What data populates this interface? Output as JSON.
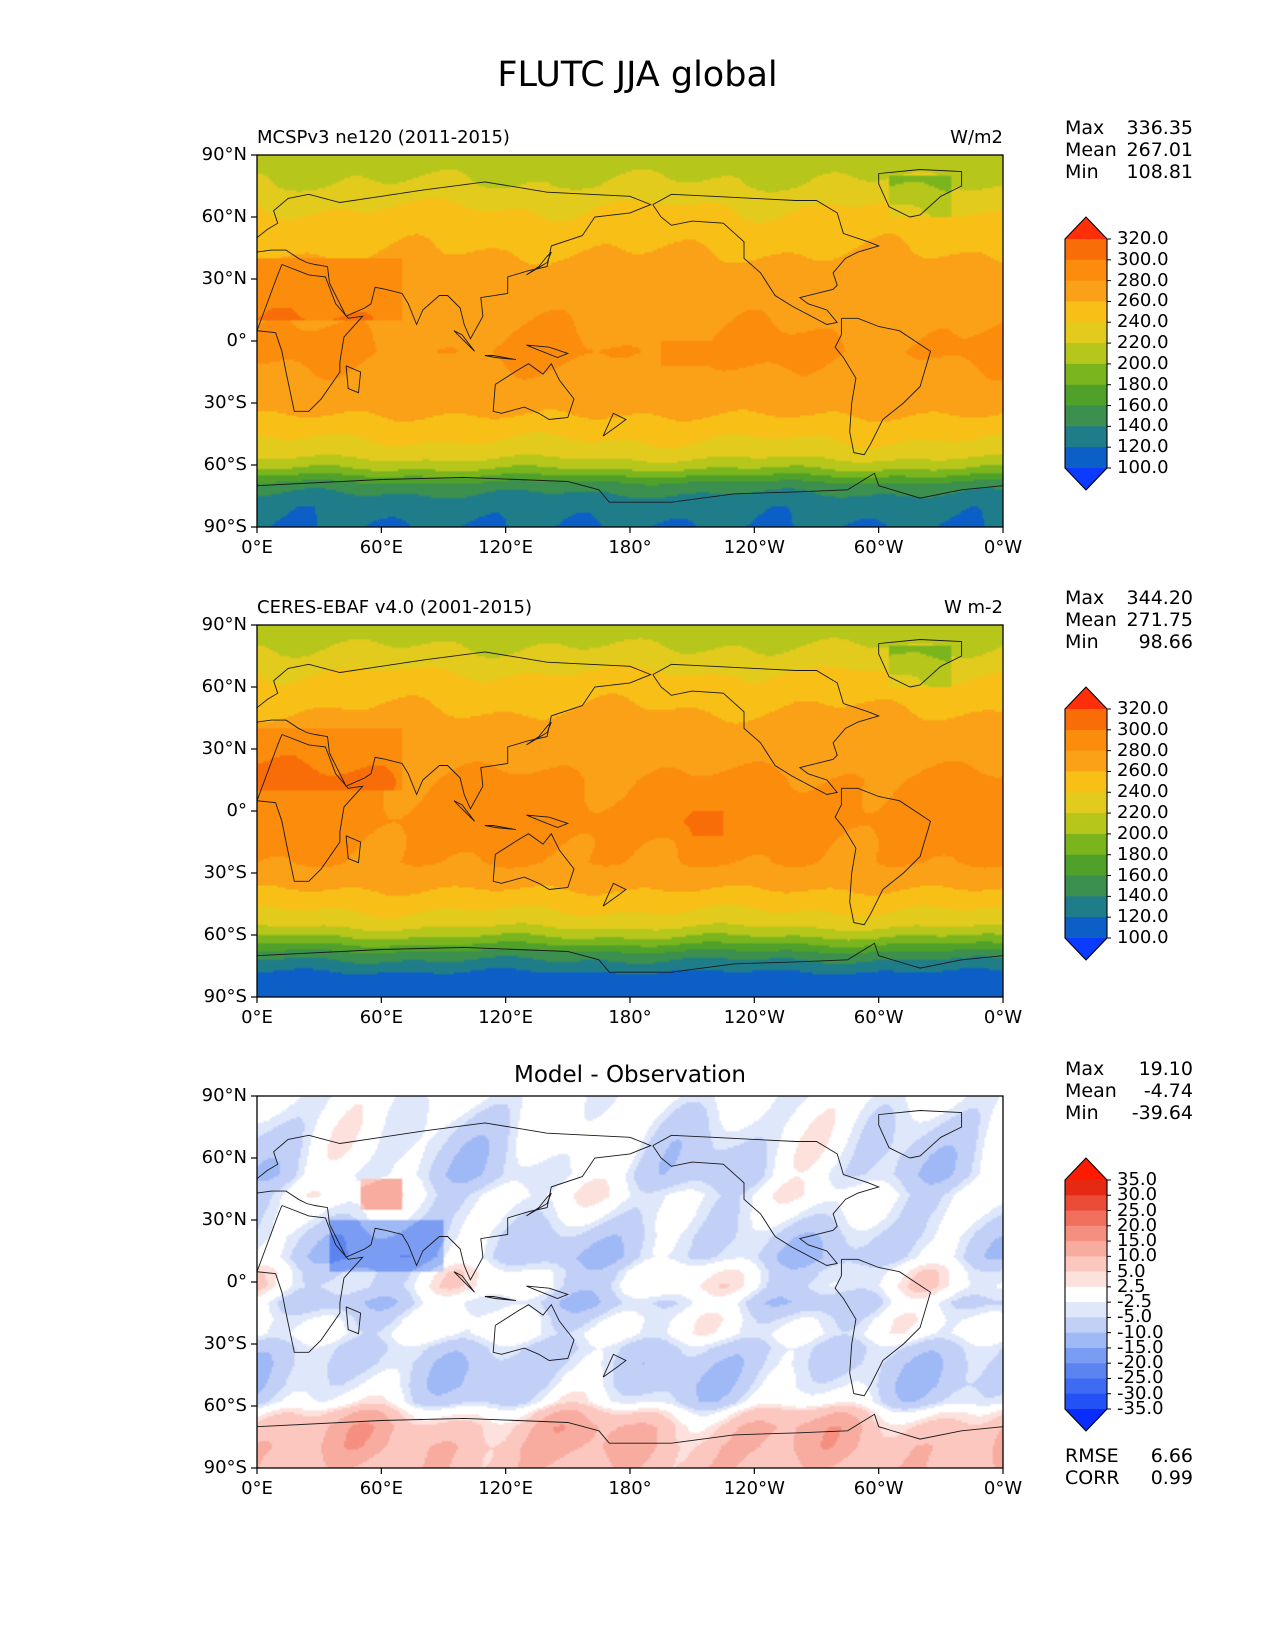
{
  "title": "FLUTC JJA global",
  "panels": [
    {
      "left_title": "MCSPv3 ne120 (2011-2015)",
      "right_title": "W/m2",
      "center_title": "",
      "stats": [
        {
          "key": "Max",
          "value": "336.35"
        },
        {
          "key": "Mean",
          "value": "267.01"
        },
        {
          "key": "Min",
          "value": "108.81"
        }
      ],
      "colorbar_labels": [
        "320.0",
        "300.0",
        "280.0",
        "260.0",
        "240.0",
        "220.0",
        "200.0",
        "180.0",
        "160.0",
        "140.0",
        "120.0",
        "100.0"
      ]
    },
    {
      "left_title": "CERES-EBAF v4.0 (2001-2015)",
      "right_title": "W m-2",
      "center_title": "",
      "stats": [
        {
          "key": "Max",
          "value": "344.20"
        },
        {
          "key": "Mean",
          "value": "271.75"
        },
        {
          "key": "Min",
          "value": "98.66"
        }
      ],
      "colorbar_labels": [
        "320.0",
        "300.0",
        "280.0",
        "260.0",
        "240.0",
        "220.0",
        "200.0",
        "180.0",
        "160.0",
        "140.0",
        "120.0",
        "100.0"
      ]
    },
    {
      "left_title": "",
      "right_title": "",
      "center_title": "Model - Observation",
      "stats": [
        {
          "key": "Max",
          "value": "19.10"
        },
        {
          "key": "Mean",
          "value": "-4.74"
        },
        {
          "key": "Min",
          "value": "-39.64"
        }
      ],
      "colorbar_labels": [
        "35.0",
        "30.0",
        "25.0",
        "20.0",
        "15.0",
        "10.0",
        "5.0",
        "2.5",
        "-2.5",
        "-5.0",
        "-10.0",
        "-15.0",
        "-20.0",
        "-25.0",
        "-30.0",
        "-35.0"
      ],
      "extra_stats": [
        {
          "key": "RMSE",
          "value": "6.66"
        },
        {
          "key": "CORR",
          "value": "0.99"
        }
      ]
    }
  ],
  "chart_data": [
    {
      "type": "heatmap",
      "title": "MCSPv3 ne120 (2011-2015)",
      "units": "W/m2",
      "ylabels": [
        "90°N",
        "60°N",
        "30°N",
        "0°",
        "30°S",
        "60°S",
        "90°S"
      ],
      "xlabels": [
        "0°E",
        "60°E",
        "120°E",
        "180°",
        "120°W",
        "60°W",
        "0°W"
      ],
      "xlim": [
        0,
        360
      ],
      "ylim": [
        -90,
        90
      ],
      "levels": [
        100,
        120,
        140,
        160,
        180,
        200,
        220,
        240,
        260,
        280,
        300,
        320
      ],
      "colors": [
        "#0a3bff",
        "#0b5fc7",
        "#1f7d8a",
        "#3b8f4f",
        "#4fa12a",
        "#7ab51e",
        "#b6c61b",
        "#e2cb1d",
        "#f8c016",
        "#fba117",
        "#fb8c0c",
        "#f86d08",
        "#ff2f0a"
      ],
      "zonal_profile": [
        [
          -90,
          120
        ],
        [
          -80,
          125
        ],
        [
          -70,
          150
        ],
        [
          -62,
          200
        ],
        [
          -55,
          228
        ],
        [
          -45,
          245
        ],
        [
          -35,
          262
        ],
        [
          -25,
          272
        ],
        [
          -15,
          276
        ],
        [
          -5,
          282
        ],
        [
          5,
          278
        ],
        [
          15,
          274
        ],
        [
          25,
          268
        ],
        [
          35,
          266
        ],
        [
          45,
          258
        ],
        [
          55,
          250
        ],
        [
          65,
          240
        ],
        [
          75,
          222
        ],
        [
          85,
          214
        ],
        [
          90,
          212
        ]
      ],
      "stats": {
        "max": 336.35,
        "mean": 267.01,
        "min": 108.81
      }
    },
    {
      "type": "heatmap",
      "title": "CERES-EBAF v4.0 (2001-2015)",
      "units": "W m-2",
      "ylabels": [
        "90°N",
        "60°N",
        "30°N",
        "0°",
        "30°S",
        "60°S",
        "90°S"
      ],
      "xlabels": [
        "0°E",
        "60°E",
        "120°E",
        "180°",
        "120°W",
        "60°W",
        "0°W"
      ],
      "xlim": [
        0,
        360
      ],
      "ylim": [
        -90,
        90
      ],
      "levels": [
        100,
        120,
        140,
        160,
        180,
        200,
        220,
        240,
        260,
        280,
        300,
        320
      ],
      "colors": [
        "#0a3bff",
        "#0b5fc7",
        "#1f7d8a",
        "#3b8f4f",
        "#4fa12a",
        "#7ab51e",
        "#b6c61b",
        "#e2cb1d",
        "#f8c016",
        "#fba117",
        "#fb8c0c",
        "#f86d08",
        "#ff2f0a"
      ],
      "zonal_profile": [
        [
          -90,
          110
        ],
        [
          -80,
          112
        ],
        [
          -70,
          148
        ],
        [
          -62,
          195
        ],
        [
          -55,
          226
        ],
        [
          -45,
          247
        ],
        [
          -35,
          266
        ],
        [
          -25,
          280
        ],
        [
          -15,
          283
        ],
        [
          -5,
          288
        ],
        [
          5,
          285
        ],
        [
          15,
          282
        ],
        [
          25,
          275
        ],
        [
          35,
          272
        ],
        [
          45,
          264
        ],
        [
          55,
          254
        ],
        [
          65,
          244
        ],
        [
          75,
          225
        ],
        [
          85,
          214
        ],
        [
          90,
          212
        ]
      ],
      "stats": {
        "max": 344.2,
        "mean": 271.75,
        "min": 98.66
      }
    },
    {
      "type": "heatmap",
      "title": "Model - Observation",
      "ylabels": [
        "90°N",
        "60°N",
        "30°N",
        "0°",
        "30°S",
        "60°S",
        "90°S"
      ],
      "xlabels": [
        "0°E",
        "60°E",
        "120°E",
        "180°",
        "120°W",
        "60°W",
        "0°W"
      ],
      "xlim": [
        0,
        360
      ],
      "ylim": [
        -90,
        90
      ],
      "levels": [
        -35,
        -30,
        -25,
        -20,
        -15,
        -10,
        -5,
        -2.5,
        2.5,
        5,
        10,
        15,
        20,
        25,
        30,
        35
      ],
      "colors": [
        "#0b2cff",
        "#2451f4",
        "#3f6bf2",
        "#5c84f1",
        "#7b9cf3",
        "#9fb8f6",
        "#c2d0f8",
        "#dfe7fb",
        "#ffffff",
        "#fde1dd",
        "#fbc7bf",
        "#f8ab9f",
        "#f58f80",
        "#f06f5d",
        "#ea4c38",
        "#e52a14",
        "#ff1a00"
      ],
      "zonal_profile": [
        [
          -90,
          8
        ],
        [
          -80,
          10
        ],
        [
          -70,
          9
        ],
        [
          -63,
          4
        ],
        [
          -58,
          -3
        ],
        [
          -50,
          -6
        ],
        [
          -40,
          -7
        ],
        [
          -32,
          -6
        ],
        [
          -25,
          -1
        ],
        [
          -18,
          -2
        ],
        [
          -10,
          -6
        ],
        [
          -2,
          -1
        ],
        [
          5,
          -2
        ],
        [
          12,
          -7
        ],
        [
          22,
          -6
        ],
        [
          32,
          -3
        ],
        [
          42,
          -1
        ],
        [
          52,
          -5
        ],
        [
          62,
          -4
        ],
        [
          72,
          -3
        ],
        [
          82,
          -2
        ],
        [
          90,
          -1
        ]
      ],
      "stats": {
        "max": 19.1,
        "mean": -4.74,
        "min": -39.64,
        "rmse": 6.66,
        "corr": 0.99
      }
    }
  ]
}
